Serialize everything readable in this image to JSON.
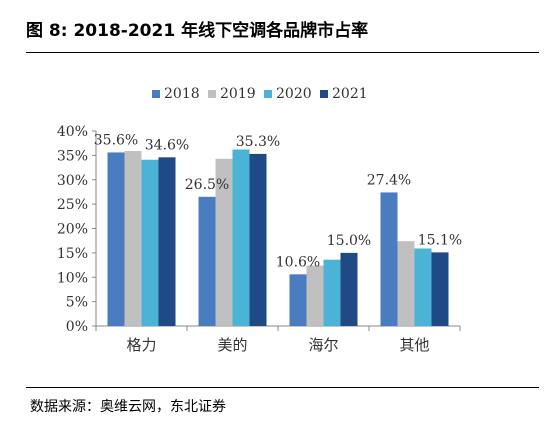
{
  "figure_title": "图 8: 2018-2021 年线下空调各品牌市占率",
  "source": "数据来源：奥维云网，东北证券",
  "colors": {
    "2018": "#4a7cc0",
    "2019": "#c0c0c0",
    "2020": "#4bb3d6",
    "2021": "#1f4a86"
  },
  "chart_data": {
    "type": "bar",
    "categories": [
      "格力",
      "美的",
      "海尔",
      "其他"
    ],
    "series": [
      {
        "name": "2018",
        "values": [
          35.6,
          26.5,
          10.6,
          27.4
        ]
      },
      {
        "name": "2019",
        "values": [
          35.9,
          34.3,
          12.4,
          17.4
        ]
      },
      {
        "name": "2020",
        "values": [
          34.1,
          36.2,
          13.6,
          15.9
        ]
      },
      {
        "name": "2021",
        "values": [
          34.6,
          35.3,
          15.0,
          15.1
        ]
      }
    ],
    "data_labels": [
      {
        "category": "格力",
        "series": "2018",
        "text": "35.6%"
      },
      {
        "category": "格力",
        "series": "2021",
        "text": "34.6%"
      },
      {
        "category": "美的",
        "series": "2018",
        "text": "26.5%"
      },
      {
        "category": "美的",
        "series": "2021",
        "text": "35.3%"
      },
      {
        "category": "海尔",
        "series": "2018",
        "text": "10.6%"
      },
      {
        "category": "海尔",
        "series": "2021",
        "text": "15.0%"
      },
      {
        "category": "其他",
        "series": "2018",
        "text": "27.4%"
      },
      {
        "category": "其他",
        "series": "2021",
        "text": "15.1%"
      }
    ],
    "yticks": [
      "0%",
      "5%",
      "10%",
      "15%",
      "20%",
      "25%",
      "30%",
      "35%",
      "40%"
    ],
    "ylim": [
      0,
      40
    ],
    "legend_position": "top",
    "grid": false
  }
}
